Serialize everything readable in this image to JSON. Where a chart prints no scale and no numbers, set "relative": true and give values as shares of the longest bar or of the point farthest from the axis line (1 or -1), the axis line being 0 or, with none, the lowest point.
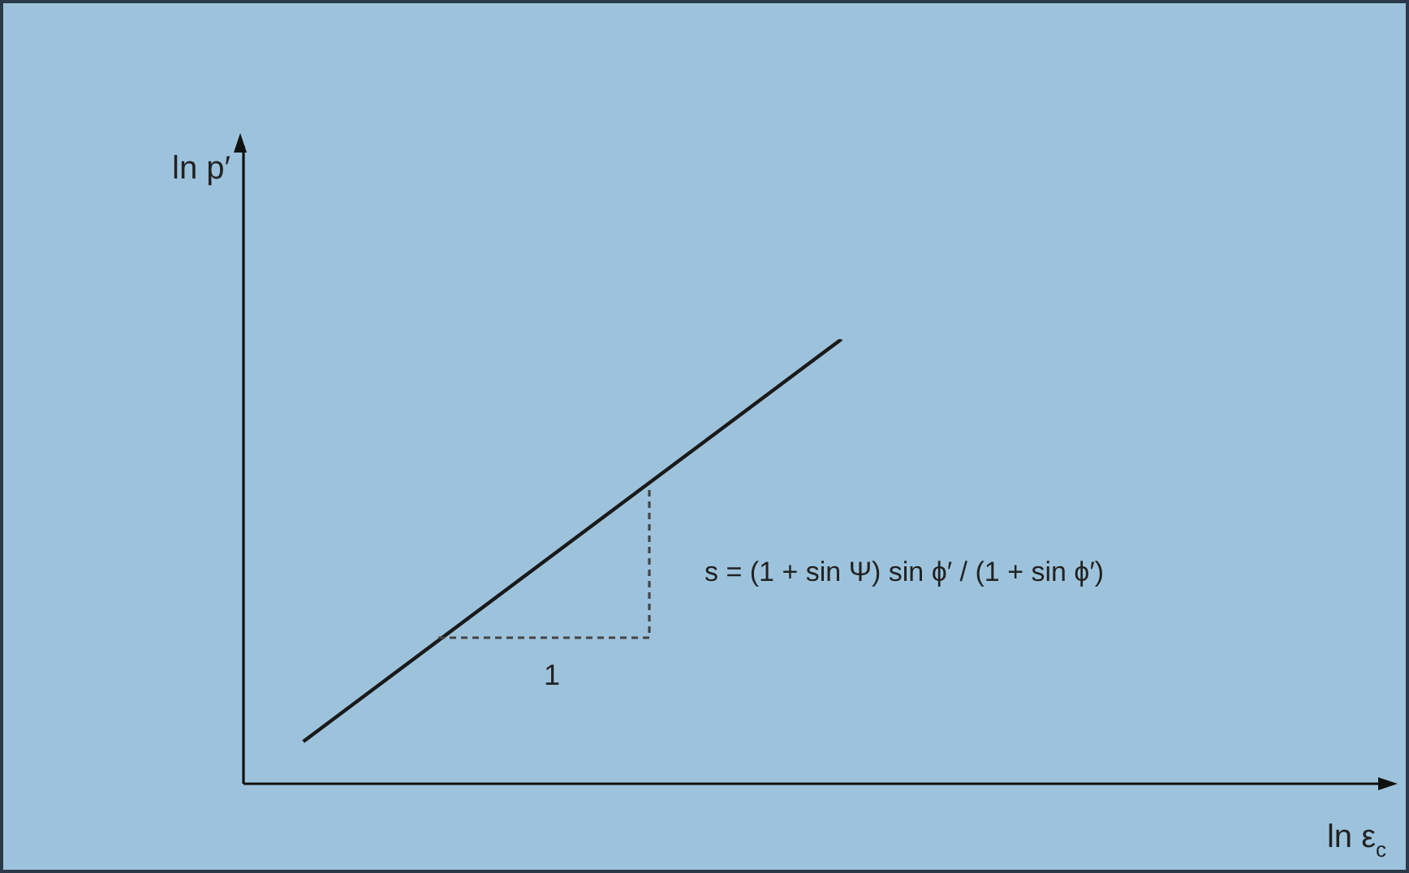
{
  "chart_data": {
    "type": "line",
    "relative": true,
    "xlabel": "ln ε$_{c}$",
    "ylabel": "ln p′",
    "legend": false,
    "marker": "none",
    "categories": [
      null,
      null,
      null,
      null,
      null,
      null,
      null,
      null,
      null,
      null,
      null,
      null,
      null,
      null,
      null,
      null,
      null,
      null,
      null,
      null
    ],
    "series": [
      {
        "color": "#1a1a1a",
        "values": [
          null,
          0.095,
          null,
          null,
          null,
          null,
          null,
          null,
          null,
          null,
          1,
          null,
          null,
          null,
          null,
          null,
          null,
          null,
          null,
          null
        ],
        "line_style": "solid"
      }
    ],
    "annotations": [
      "1",
      "s = (1 + sin Ψ) sin ϕ′ / (1 + sin ϕ′)"
    ]
  }
}
